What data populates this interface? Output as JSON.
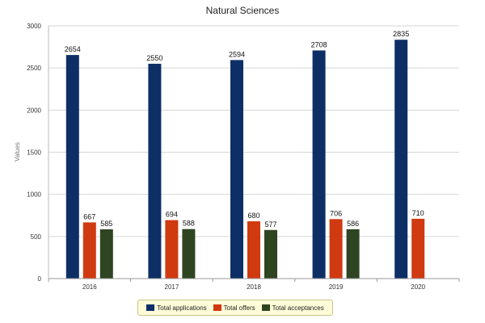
{
  "chart_data": {
    "type": "bar",
    "title": "Natural Sciences",
    "ylabel": "Values",
    "xlabel": "",
    "ylim": [
      0,
      3000
    ],
    "yticks": [
      0,
      500,
      1000,
      1500,
      2000,
      2500,
      3000
    ],
    "grid": true,
    "legend_position": "bottom",
    "categories": [
      "2016",
      "2017",
      "2018",
      "2019",
      "2020"
    ],
    "series": [
      {
        "name": "Total applications",
        "color": "#0d2f66",
        "values": [
          2654,
          2550,
          2594,
          2708,
          2835
        ]
      },
      {
        "name": "Total offers",
        "color": "#d03a10",
        "values": [
          667,
          694,
          680,
          706,
          710
        ]
      },
      {
        "name": "Total acceptances",
        "color": "#2f4421",
        "values": [
          585,
          588,
          577,
          586,
          null
        ]
      }
    ]
  }
}
